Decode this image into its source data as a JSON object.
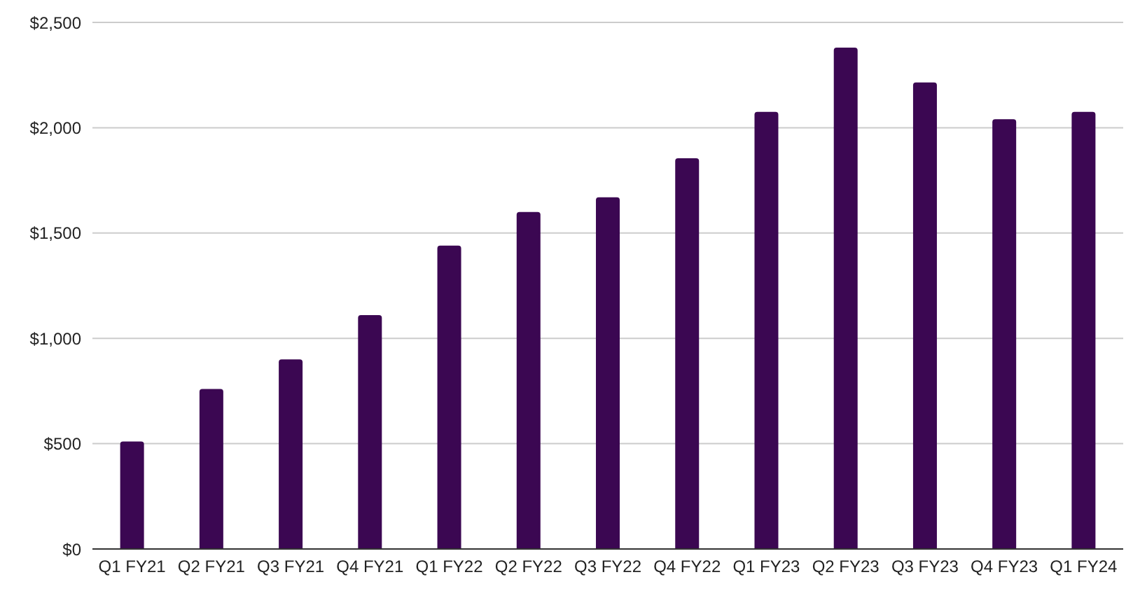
{
  "chart_data": {
    "type": "bar",
    "categories": [
      "Q1 FY21",
      "Q2 FY21",
      "Q3 FY21",
      "Q4 FY21",
      "Q1 FY22",
      "Q2 FY22",
      "Q3 FY22",
      "Q4 FY22",
      "Q1 FY23",
      "Q2 FY23",
      "Q3 FY23",
      "Q4 FY23",
      "Q1 FY24"
    ],
    "values": [
      510,
      760,
      900,
      1110,
      1440,
      1600,
      1670,
      1855,
      2075,
      2380,
      2215,
      2040,
      2075
    ],
    "color": "#3b0752",
    "ylim": [
      0,
      2500
    ],
    "yticks": [
      {
        "value": 0,
        "label": "$0"
      },
      {
        "value": 500,
        "label": "$500"
      },
      {
        "value": 1000,
        "label": "$1,000"
      },
      {
        "value": 1500,
        "label": "$1,500"
      },
      {
        "value": 2000,
        "label": "$2,000"
      },
      {
        "value": 2500,
        "label": "$2,500"
      }
    ],
    "grid": "y"
  }
}
